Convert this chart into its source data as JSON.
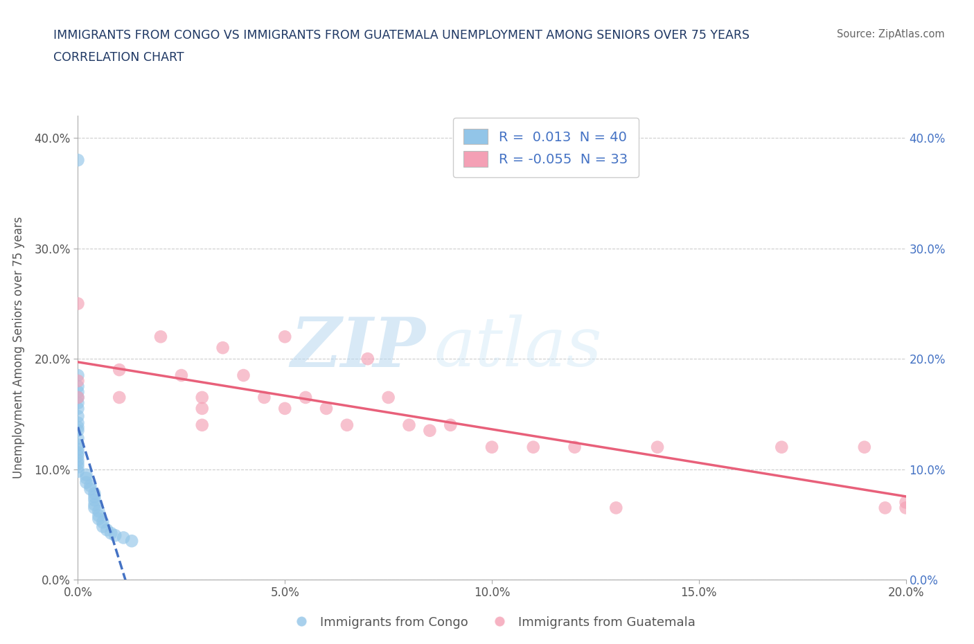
{
  "title_line1": "IMMIGRANTS FROM CONGO VS IMMIGRANTS FROM GUATEMALA UNEMPLOYMENT AMONG SENIORS OVER 75 YEARS",
  "title_line2": "CORRELATION CHART",
  "source": "Source: ZipAtlas.com",
  "ylabel": "Unemployment Among Seniors over 75 years",
  "xlim": [
    0.0,
    0.2
  ],
  "ylim": [
    0.0,
    0.42
  ],
  "xticks": [
    0.0,
    0.05,
    0.1,
    0.15,
    0.2
  ],
  "yticks": [
    0.0,
    0.1,
    0.2,
    0.3,
    0.4
  ],
  "xtick_labels": [
    "0.0%",
    "5.0%",
    "10.0%",
    "15.0%",
    "20.0%"
  ],
  "ytick_labels": [
    "0.0%",
    "10.0%",
    "20.0%",
    "30.0%",
    "40.0%"
  ],
  "congo_color": "#92C5E8",
  "guatemala_color": "#F4A0B5",
  "congo_R": 0.013,
  "congo_N": 40,
  "guatemala_R": -0.055,
  "guatemala_N": 33,
  "congo_trend_color": "#4472C4",
  "guatemala_trend_color": "#E8607A",
  "legend_bottom_labels": [
    "Immigrants from Congo",
    "Immigrants from Guatemala"
  ],
  "congo_x": [
    0.0,
    0.0,
    0.0,
    0.0,
    0.0,
    0.0,
    0.0,
    0.0,
    0.0,
    0.0,
    0.0,
    0.0,
    0.0,
    0.0,
    0.0,
    0.0,
    0.0,
    0.0,
    0.0,
    0.0,
    0.002,
    0.002,
    0.002,
    0.003,
    0.003,
    0.004,
    0.004,
    0.004,
    0.004,
    0.004,
    0.005,
    0.005,
    0.005,
    0.006,
    0.006,
    0.007,
    0.008,
    0.009,
    0.011,
    0.013
  ],
  "congo_y": [
    0.38,
    0.185,
    0.175,
    0.17,
    0.165,
    0.16,
    0.155,
    0.148,
    0.142,
    0.138,
    0.135,
    0.128,
    0.122,
    0.118,
    0.115,
    0.112,
    0.108,
    0.105,
    0.102,
    0.098,
    0.095,
    0.092,
    0.088,
    0.085,
    0.082,
    0.078,
    0.075,
    0.072,
    0.068,
    0.065,
    0.062,
    0.058,
    0.055,
    0.052,
    0.048,
    0.045,
    0.042,
    0.04,
    0.038,
    0.035
  ],
  "guatemala_x": [
    0.0,
    0.0,
    0.0,
    0.01,
    0.01,
    0.02,
    0.025,
    0.03,
    0.03,
    0.03,
    0.035,
    0.04,
    0.045,
    0.05,
    0.05,
    0.055,
    0.06,
    0.065,
    0.07,
    0.075,
    0.08,
    0.085,
    0.09,
    0.1,
    0.11,
    0.12,
    0.13,
    0.14,
    0.17,
    0.19,
    0.195,
    0.2,
    0.2
  ],
  "guatemala_y": [
    0.25,
    0.18,
    0.165,
    0.19,
    0.165,
    0.22,
    0.185,
    0.165,
    0.155,
    0.14,
    0.21,
    0.185,
    0.165,
    0.155,
    0.22,
    0.165,
    0.155,
    0.14,
    0.2,
    0.165,
    0.14,
    0.135,
    0.14,
    0.12,
    0.12,
    0.12,
    0.065,
    0.12,
    0.12,
    0.12,
    0.065,
    0.065,
    0.07
  ]
}
